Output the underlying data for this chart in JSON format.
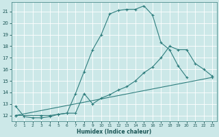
{
  "xlabel": "Humidex (Indice chaleur)",
  "bg_color": "#cce8e8",
  "grid_color": "#ffffff",
  "line_color": "#2e7d7d",
  "xlim": [
    -0.5,
    23.5
  ],
  "ylim": [
    11.5,
    21.8
  ],
  "xticks": [
    0,
    1,
    2,
    3,
    4,
    5,
    6,
    7,
    8,
    9,
    10,
    11,
    12,
    13,
    14,
    15,
    16,
    17,
    18,
    19,
    20,
    21,
    22,
    23
  ],
  "yticks": [
    12,
    13,
    14,
    15,
    16,
    17,
    18,
    19,
    20,
    21
  ],
  "series": [
    {
      "x": [
        0,
        1,
        2,
        3,
        4,
        5,
        6,
        7,
        8,
        9,
        10,
        11,
        12,
        13,
        14,
        15,
        16,
        17,
        18,
        19,
        20
      ],
      "y": [
        12.8,
        11.9,
        11.8,
        11.8,
        11.9,
        12.1,
        12.2,
        13.9,
        15.8,
        17.7,
        19.0,
        20.8,
        21.1,
        21.2,
        21.2,
        21.5,
        20.7,
        18.3,
        17.7,
        16.3,
        15.3
      ]
    },
    {
      "x": [
        0,
        3,
        4,
        5,
        6,
        7,
        8,
        9,
        10,
        11,
        12,
        13,
        14,
        15,
        16,
        17,
        18,
        19,
        20,
        21,
        22,
        23
      ],
      "y": [
        12.0,
        12.0,
        12.0,
        12.1,
        12.2,
        12.2,
        13.9,
        13.0,
        13.5,
        13.8,
        14.2,
        14.5,
        15.0,
        15.7,
        16.2,
        17.0,
        18.0,
        17.7,
        17.7,
        16.5,
        16.0,
        15.4
      ]
    },
    {
      "x": [
        0,
        23
      ],
      "y": [
        12.0,
        15.3
      ]
    }
  ]
}
